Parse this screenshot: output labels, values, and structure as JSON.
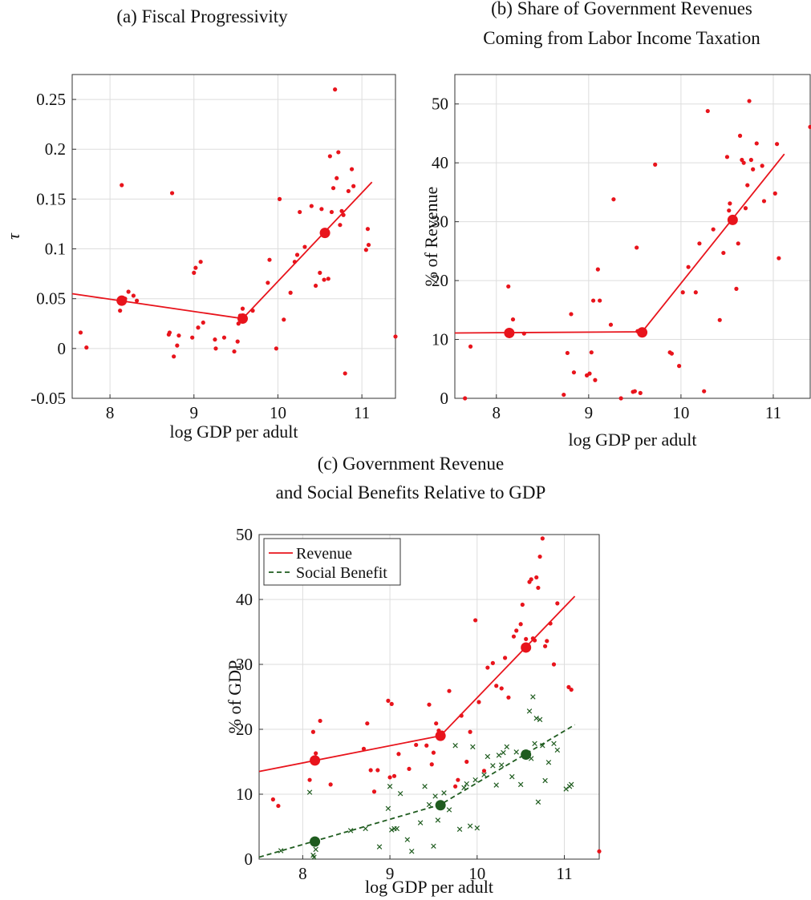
{
  "colors": {
    "red": "#e8141c",
    "green": "#1f5c1f"
  },
  "chart_data": [
    {
      "id": "a",
      "type": "scatter",
      "title": "(a) Fiscal Progressivity",
      "xlabel": "log GDP per adult",
      "ylabel": "τ",
      "xlim": [
        7.55,
        11.4
      ],
      "ylim": [
        -0.05,
        0.275
      ],
      "xticks": [
        8,
        9,
        10,
        11
      ],
      "yticks": [
        -0.05,
        0,
        0.05,
        0.1,
        0.15,
        0.2,
        0.25
      ],
      "ytick_labels": [
        "-0.05",
        "0",
        "0.05",
        "0.1",
        "0.15",
        "0.2",
        "0.25"
      ],
      "grid": true,
      "series": [
        {
          "kind": "points",
          "marker": "dot",
          "color": "red",
          "x": [
            7.65,
            7.72,
            8.12,
            8.14,
            8.18,
            8.22,
            8.28,
            8.32,
            8.7,
            8.71,
            8.74,
            8.76,
            8.8,
            8.82,
            8.98,
            9.0,
            9.02,
            9.05,
            9.08,
            9.11,
            9.25,
            9.26,
            9.36,
            9.48,
            9.52,
            9.53,
            9.55,
            9.58,
            9.6,
            9.7,
            9.88,
            9.9,
            9.98,
            10.02,
            10.07,
            10.15,
            10.2,
            10.23,
            10.26,
            10.32,
            10.4,
            10.45,
            10.5,
            10.52,
            10.55,
            10.58,
            10.6,
            10.62,
            10.64,
            10.66,
            10.68,
            10.7,
            10.72,
            10.74,
            10.76,
            10.78,
            10.8,
            10.84,
            10.88,
            10.9,
            11.05,
            11.07,
            11.08,
            11.4
          ],
          "y": [
            0.016,
            0.001,
            0.038,
            0.164,
            0.05,
            0.057,
            0.053,
            0.048,
            0.014,
            0.016,
            0.156,
            -0.008,
            0.003,
            0.013,
            0.011,
            0.076,
            0.081,
            0.021,
            0.087,
            0.026,
            0.009,
            0.0,
            0.011,
            -0.003,
            0.007,
            0.025,
            0.033,
            0.04,
            0.03,
            0.038,
            0.066,
            0.089,
            0.0,
            0.15,
            0.029,
            0.056,
            0.087,
            0.094,
            0.137,
            0.102,
            0.143,
            0.063,
            0.076,
            0.14,
            0.069,
            0.116,
            0.07,
            0.193,
            0.137,
            0.161,
            0.26,
            0.171,
            0.197,
            0.124,
            0.138,
            0.134,
            -0.025,
            0.158,
            0.18,
            0.163,
            0.099,
            0.12,
            0.104,
            0.012
          ]
        },
        {
          "kind": "line",
          "color": "red",
          "x": [
            7.55,
            9.58,
            11.12
          ],
          "y": [
            0.055,
            0.03,
            0.167
          ]
        },
        {
          "kind": "points",
          "marker": "big-dot",
          "color": "red",
          "x": [
            8.14,
            9.58,
            10.56
          ],
          "y": [
            0.048,
            0.03,
            0.116
          ]
        }
      ]
    },
    {
      "id": "b",
      "type": "scatter",
      "title": [
        "(b) Share of Government Revenues",
        "Coming from Labor Income Taxation"
      ],
      "xlabel": "log GDP per adult",
      "ylabel": "% of Revenue",
      "xlim": [
        7.55,
        11.4
      ],
      "ylim": [
        0,
        55
      ],
      "xticks": [
        8,
        9,
        10,
        11
      ],
      "yticks": [
        0,
        10,
        20,
        30,
        40,
        50
      ],
      "ytick_labels": [
        "0",
        "10",
        "20",
        "30",
        "40",
        "50"
      ],
      "grid": true,
      "series": [
        {
          "kind": "points",
          "marker": "dot",
          "color": "red",
          "x": [
            7.66,
            7.72,
            8.13,
            8.18,
            8.3,
            8.73,
            8.77,
            8.81,
            8.84,
            8.98,
            9.01,
            9.03,
            9.05,
            9.07,
            9.1,
            9.12,
            9.24,
            9.27,
            9.35,
            9.48,
            9.5,
            9.52,
            9.53,
            9.56,
            9.72,
            9.88,
            9.9,
            9.98,
            10.02,
            10.08,
            10.16,
            10.2,
            10.25,
            10.29,
            10.35,
            10.42,
            10.46,
            10.5,
            10.52,
            10.53,
            10.56,
            10.6,
            10.62,
            10.64,
            10.66,
            10.68,
            10.7,
            10.72,
            10.74,
            10.76,
            10.78,
            10.82,
            10.88,
            10.9,
            11.02,
            11.04,
            11.06,
            11.4
          ],
          "y": [
            0.0,
            8.8,
            19.0,
            13.4,
            11.0,
            0.6,
            7.7,
            14.3,
            4.4,
            3.9,
            4.2,
            7.8,
            16.6,
            3.1,
            21.9,
            16.6,
            12.5,
            33.8,
            0.0,
            1.1,
            1.2,
            25.6,
            11.4,
            0.9,
            39.7,
            7.8,
            7.6,
            5.5,
            18.0,
            22.3,
            18.0,
            26.3,
            1.2,
            48.8,
            28.7,
            13.3,
            24.7,
            41.0,
            31.9,
            33.1,
            30.5,
            18.6,
            26.3,
            44.6,
            40.5,
            40.0,
            32.3,
            36.2,
            50.5,
            40.5,
            38.9,
            43.3,
            39.5,
            33.5,
            34.8,
            43.2,
            23.8,
            46.1
          ]
        },
        {
          "kind": "line",
          "color": "red",
          "x": [
            7.55,
            9.58,
            11.12
          ],
          "y": [
            11.1,
            11.3,
            41.5
          ]
        },
        {
          "kind": "points",
          "marker": "big-dot",
          "color": "red",
          "x": [
            8.14,
            9.58,
            10.56
          ],
          "y": [
            11.1,
            11.2,
            30.3
          ]
        }
      ]
    },
    {
      "id": "c",
      "type": "scatter",
      "title": [
        "(c) Government Revenue",
        "and Social Benefits Relative to GDP"
      ],
      "xlabel": "log GDP per adult",
      "ylabel": "% of GDP",
      "xlim": [
        7.5,
        11.4
      ],
      "ylim": [
        0,
        50
      ],
      "xticks": [
        8,
        9,
        10,
        11
      ],
      "yticks": [
        0,
        10,
        20,
        30,
        40,
        50
      ],
      "ytick_labels": [
        "0",
        "10",
        "20",
        "30",
        "40",
        "50"
      ],
      "grid": true,
      "legend": {
        "placement": "top-left",
        "entries": [
          {
            "label": "Revenue",
            "color": "red",
            "style": "solid"
          },
          {
            "label": "Social Benefit",
            "color": "green",
            "style": "dashed"
          }
        ]
      },
      "series": [
        {
          "name": "Revenue",
          "kind": "points",
          "marker": "dot",
          "color": "red",
          "x": [
            7.66,
            7.72,
            8.08,
            8.12,
            8.15,
            8.2,
            8.32,
            8.7,
            8.74,
            8.78,
            8.82,
            8.86,
            8.98,
            9.0,
            9.02,
            9.05,
            9.1,
            9.22,
            9.3,
            9.42,
            9.45,
            9.48,
            9.5,
            9.53,
            9.56,
            9.6,
            9.68,
            9.75,
            9.78,
            9.82,
            9.88,
            9.92,
            9.98,
            10.02,
            10.08,
            10.12,
            10.18,
            10.22,
            10.28,
            10.32,
            10.36,
            10.42,
            10.45,
            10.5,
            10.52,
            10.56,
            10.6,
            10.62,
            10.64,
            10.66,
            10.68,
            10.7,
            10.72,
            10.75,
            10.78,
            10.8,
            10.84,
            10.88,
            10.92,
            11.05,
            11.08,
            11.4
          ],
          "y": [
            9.2,
            8.2,
            12.2,
            19.6,
            16.3,
            21.3,
            11.5,
            17.0,
            20.9,
            13.7,
            10.4,
            13.7,
            24.4,
            12.6,
            23.9,
            12.8,
            16.2,
            13.9,
            17.6,
            17.5,
            23.8,
            14.6,
            16.4,
            20.9,
            19.8,
            19.5,
            25.9,
            11.2,
            12.2,
            22.1,
            15.0,
            19.6,
            36.8,
            24.2,
            13.6,
            29.5,
            30.2,
            26.7,
            26.3,
            31.0,
            24.9,
            34.3,
            35.2,
            36.2,
            39.2,
            33.9,
            42.7,
            43.1,
            34.0,
            33.7,
            43.4,
            41.8,
            46.6,
            49.4,
            32.8,
            33.6,
            36.3,
            30.0,
            39.4,
            26.5,
            26.1,
            1.2
          ]
        },
        {
          "name": "Social Benefit",
          "kind": "points",
          "marker": "cross",
          "color": "green",
          "x": [
            7.75,
            8.08,
            8.12,
            8.13,
            8.15,
            8.55,
            8.72,
            8.88,
            8.98,
            9.0,
            9.02,
            9.05,
            9.08,
            9.12,
            9.2,
            9.25,
            9.35,
            9.4,
            9.45,
            9.5,
            9.52,
            9.55,
            9.58,
            9.62,
            9.68,
            9.75,
            9.8,
            9.85,
            9.88,
            9.92,
            9.95,
            9.98,
            10.0,
            10.08,
            10.12,
            10.18,
            10.22,
            10.25,
            10.28,
            10.3,
            10.34,
            10.4,
            10.45,
            10.5,
            10.55,
            10.6,
            10.62,
            10.64,
            10.66,
            10.68,
            10.7,
            10.72,
            10.75,
            10.78,
            10.82,
            10.88,
            10.92,
            11.02,
            11.06,
            11.08
          ],
          "y": [
            1.3,
            10.3,
            0.6,
            0.3,
            1.5,
            4.4,
            4.7,
            1.9,
            7.8,
            11.2,
            4.5,
            4.7,
            4.7,
            10.1,
            3.0,
            1.2,
            5.6,
            11.2,
            8.4,
            2.0,
            9.7,
            6.0,
            8.5,
            10.2,
            7.6,
            17.5,
            4.6,
            11.0,
            11.6,
            5.1,
            17.3,
            12.2,
            4.8,
            13.0,
            15.8,
            14.4,
            11.4,
            16.0,
            14.5,
            16.4,
            17.3,
            12.7,
            16.5,
            11.5,
            16.4,
            22.8,
            15.5,
            25.0,
            17.8,
            21.7,
            8.8,
            21.5,
            17.5,
            12.1,
            14.9,
            17.8,
            16.8,
            10.8,
            11.2,
            11.5
          ]
        },
        {
          "name": "Revenue",
          "kind": "line",
          "color": "red",
          "style": "solid",
          "x": [
            7.5,
            9.58,
            11.12
          ],
          "y": [
            13.5,
            19.0,
            40.5
          ]
        },
        {
          "name": "Social Benefit",
          "kind": "line",
          "color": "green",
          "style": "dashed",
          "x": [
            7.5,
            9.58,
            11.12
          ],
          "y": [
            0.3,
            8.4,
            20.7
          ]
        },
        {
          "name": "Revenue",
          "kind": "points",
          "marker": "big-dot",
          "color": "red",
          "x": [
            8.14,
            9.58,
            10.56
          ],
          "y": [
            15.2,
            19.0,
            32.6
          ]
        },
        {
          "name": "Social Benefit",
          "kind": "points",
          "marker": "big-dot",
          "color": "green",
          "x": [
            8.14,
            9.58,
            10.56
          ],
          "y": [
            2.7,
            8.3,
            16.1
          ]
        }
      ]
    }
  ]
}
